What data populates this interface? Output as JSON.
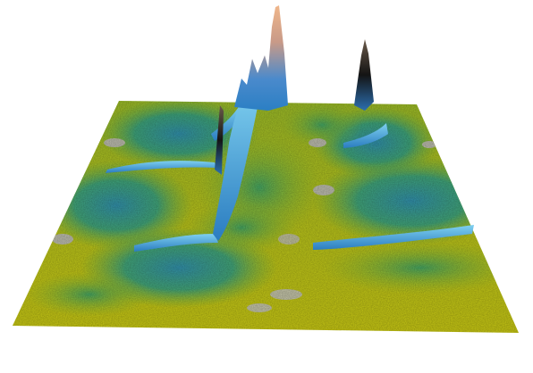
{
  "scene": {
    "kind": "3d-surface-render",
    "colors": {
      "background": "#ffffff",
      "surface_low": "#c8c814",
      "surface_mid": "#2fa08c",
      "surface_high": "#3aa8e6",
      "peak_light": "#e8a070",
      "peak_dark": "#1a1a1a",
      "flat_patch": "#b8b8a8"
    }
  }
}
